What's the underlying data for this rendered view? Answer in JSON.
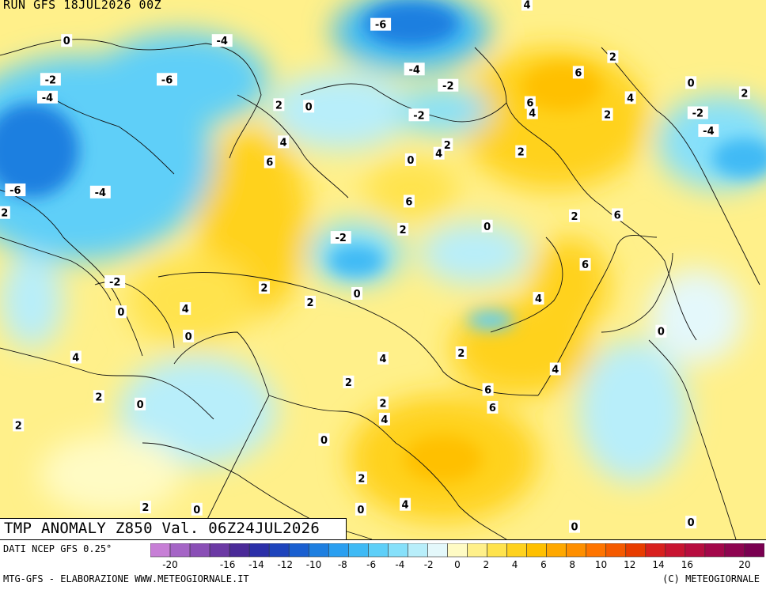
{
  "run_title": "RUN GFS 18JUL2026 00Z",
  "field_title": "TMP ANOMALY Z850 Val. 06Z24JUL2026",
  "data_source": "DATI NCEP GFS 0.25°",
  "credit": "MTG-GFS - ELABORAZIONE WWW.METEOGIORNALE.IT",
  "copyright": "(C) METEOGIORNALE",
  "colorbar": {
    "colors": [
      "#c77fd6",
      "#a565c6",
      "#8a4fb6",
      "#6b39a4",
      "#4a2a98",
      "#2b2fa8",
      "#1e44bc",
      "#1a5fd0",
      "#1e7fe0",
      "#2a9ff0",
      "#3fbaf5",
      "#5ecff8",
      "#86e0fa",
      "#b8eefa",
      "#e4f8fb",
      "#fffbc4",
      "#fff08a",
      "#ffe34d",
      "#ffd21e",
      "#ffc000",
      "#ffa800",
      "#ff8f00",
      "#ff7400",
      "#f55a00",
      "#e83c00",
      "#d8201e",
      "#c81431",
      "#b70d3f",
      "#a3074a",
      "#8e0450",
      "#7a0051"
    ],
    "ticks": [
      "-20",
      "-18",
      "-16",
      "-14",
      "-12",
      "-10",
      "-8",
      "-6",
      "-4",
      "-2",
      "0",
      "2",
      "4",
      "6",
      "8",
      "10",
      "12",
      "14",
      "16",
      "18",
      "20"
    ],
    "tick_labels": [
      "-20",
      "-16",
      "-14",
      "-12",
      "-10",
      "-8",
      "-6",
      "-4",
      "-2",
      "0",
      "2",
      "4",
      "6",
      "8",
      "10",
      "12",
      "14",
      "16",
      "20"
    ]
  },
  "contour_labels": [
    {
      "text": "-6",
      "lon": 0.497,
      "lat": 0.045
    },
    {
      "text": "4",
      "lon": 0.688,
      "lat": 0.008
    },
    {
      "text": "0",
      "lon": 0.087,
      "lat": 0.075
    },
    {
      "text": "-4",
      "lon": 0.29,
      "lat": 0.075
    },
    {
      "text": "-2",
      "lon": 0.066,
      "lat": 0.147
    },
    {
      "text": "-6",
      "lon": 0.218,
      "lat": 0.147
    },
    {
      "text": "-4",
      "lon": 0.062,
      "lat": 0.18
    },
    {
      "text": "-4",
      "lon": 0.541,
      "lat": 0.128
    },
    {
      "text": "-2",
      "lon": 0.585,
      "lat": 0.158
    },
    {
      "text": "6",
      "lon": 0.755,
      "lat": 0.134
    },
    {
      "text": "2",
      "lon": 0.8,
      "lat": 0.105
    },
    {
      "text": "0",
      "lon": 0.902,
      "lat": 0.153
    },
    {
      "text": "2",
      "lon": 0.972,
      "lat": 0.172
    },
    {
      "text": "2",
      "lon": 0.364,
      "lat": 0.194
    },
    {
      "text": "0",
      "lon": 0.403,
      "lat": 0.197
    },
    {
      "text": "-2",
      "lon": 0.547,
      "lat": 0.213
    },
    {
      "text": "6",
      "lon": 0.692,
      "lat": 0.19
    },
    {
      "text": "4",
      "lon": 0.695,
      "lat": 0.209
    },
    {
      "text": "4",
      "lon": 0.823,
      "lat": 0.181
    },
    {
      "text": "2",
      "lon": 0.793,
      "lat": 0.212
    },
    {
      "text": "-2",
      "lon": 0.911,
      "lat": 0.209
    },
    {
      "text": "-4",
      "lon": 0.925,
      "lat": 0.242
    },
    {
      "text": "4",
      "lon": 0.37,
      "lat": 0.263
    },
    {
      "text": "2",
      "lon": 0.584,
      "lat": 0.268
    },
    {
      "text": "4",
      "lon": 0.573,
      "lat": 0.284
    },
    {
      "text": "0",
      "lon": 0.536,
      "lat": 0.296
    },
    {
      "text": "2",
      "lon": 0.68,
      "lat": 0.281
    },
    {
      "text": "6",
      "lon": 0.352,
      "lat": 0.3
    },
    {
      "text": "-6",
      "lon": 0.02,
      "lat": 0.352
    },
    {
      "text": "-4",
      "lon": 0.131,
      "lat": 0.356
    },
    {
      "text": "6",
      "lon": 0.534,
      "lat": 0.373
    },
    {
      "text": "2",
      "lon": 0.75,
      "lat": 0.4
    },
    {
      "text": "6",
      "lon": 0.806,
      "lat": 0.398
    },
    {
      "text": "2",
      "lon": 0.006,
      "lat": 0.394
    },
    {
      "text": "0",
      "lon": 0.636,
      "lat": 0.419
    },
    {
      "text": "2",
      "lon": 0.526,
      "lat": 0.425
    },
    {
      "text": "-2",
      "lon": 0.445,
      "lat": 0.44
    },
    {
      "text": "6",
      "lon": 0.764,
      "lat": 0.49
    },
    {
      "text": "-2",
      "lon": 0.15,
      "lat": 0.522
    },
    {
      "text": "2",
      "lon": 0.345,
      "lat": 0.533
    },
    {
      "text": "0",
      "lon": 0.466,
      "lat": 0.544
    },
    {
      "text": "2",
      "lon": 0.405,
      "lat": 0.56
    },
    {
      "text": "4",
      "lon": 0.703,
      "lat": 0.553
    },
    {
      "text": "4",
      "lon": 0.242,
      "lat": 0.572
    },
    {
      "text": "0",
      "lon": 0.158,
      "lat": 0.578
    },
    {
      "text": "0",
      "lon": 0.863,
      "lat": 0.614
    },
    {
      "text": "0",
      "lon": 0.246,
      "lat": 0.623
    },
    {
      "text": "2",
      "lon": 0.602,
      "lat": 0.654
    },
    {
      "text": "4",
      "lon": 0.099,
      "lat": 0.662
    },
    {
      "text": "4",
      "lon": 0.5,
      "lat": 0.664
    },
    {
      "text": "4",
      "lon": 0.725,
      "lat": 0.684
    },
    {
      "text": "2",
      "lon": 0.455,
      "lat": 0.708
    },
    {
      "text": "6",
      "lon": 0.637,
      "lat": 0.722
    },
    {
      "text": "2",
      "lon": 0.129,
      "lat": 0.735
    },
    {
      "text": "0",
      "lon": 0.183,
      "lat": 0.749
    },
    {
      "text": "2",
      "lon": 0.5,
      "lat": 0.747
    },
    {
      "text": "6",
      "lon": 0.643,
      "lat": 0.755
    },
    {
      "text": "4",
      "lon": 0.502,
      "lat": 0.777
    },
    {
      "text": "2",
      "lon": 0.024,
      "lat": 0.788
    },
    {
      "text": "0",
      "lon": 0.423,
      "lat": 0.815
    },
    {
      "text": "2",
      "lon": 0.472,
      "lat": 0.886
    },
    {
      "text": "4",
      "lon": 0.529,
      "lat": 0.935
    },
    {
      "text": "2",
      "lon": 0.19,
      "lat": 0.94
    },
    {
      "text": "0",
      "lon": 0.257,
      "lat": 0.944
    },
    {
      "text": "0",
      "lon": 0.471,
      "lat": 0.944
    },
    {
      "text": "0",
      "lon": 0.75,
      "lat": 0.976
    },
    {
      "text": "0",
      "lon": 0.902,
      "lat": 0.968
    }
  ]
}
